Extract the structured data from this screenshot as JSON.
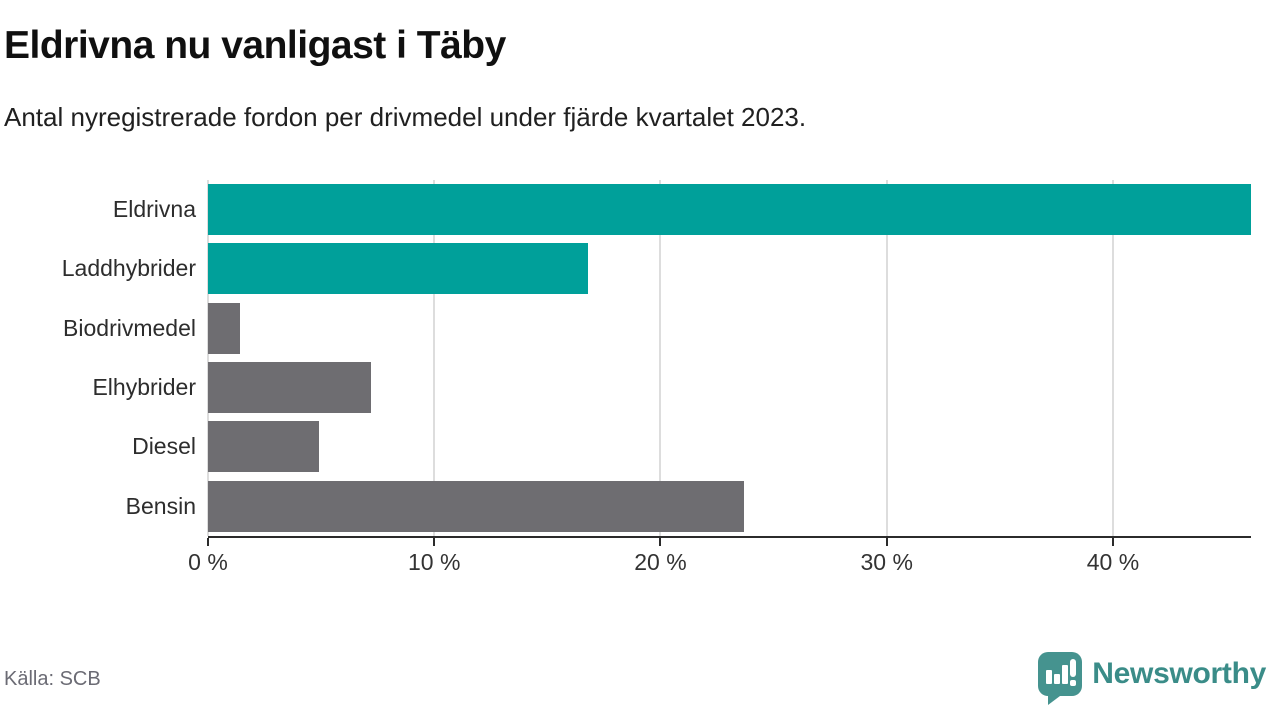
{
  "header": {
    "title": "Eldrivna nu vanligast i Täby",
    "subtitle": "Antal nyregistrerade fordon per drivmedel under fjärde kvartalet 2023."
  },
  "chart_data": {
    "type": "bar",
    "orientation": "horizontal",
    "title": "Eldrivna nu vanligast i Täby",
    "subtitle": "Antal nyregistrerade fordon per drivmedel under fjärde kvartalet 2023.",
    "categories": [
      "Eldrivna",
      "Laddhybrider",
      "Biodrivmedel",
      "Elhybrider",
      "Diesel",
      "Bensin"
    ],
    "values": [
      46.1,
      16.8,
      1.4,
      7.2,
      4.9,
      23.7
    ],
    "unit": "%",
    "bar_colors": [
      "#00A09A",
      "#00A09A",
      "#6E6D71",
      "#6E6D71",
      "#6E6D71",
      "#6E6D71"
    ],
    "xlim": [
      0,
      46.1
    ],
    "ticks": [
      {
        "label": "0 %",
        "value": 0
      },
      {
        "label": "10 %",
        "value": 10
      },
      {
        "label": "20 %",
        "value": 20
      },
      {
        "label": "30 %",
        "value": 30
      },
      {
        "label": "40 %",
        "value": 40
      }
    ],
    "grid": true,
    "legend": false,
    "ylabel": "",
    "xlabel": ""
  },
  "colors": {
    "highlight_teal": "#00A09A",
    "neutral_gray": "#6E6D71",
    "gridline": "#DDDDDD",
    "axis": "#2B2B2B",
    "brand_teal": "#3A8C88",
    "logo_icon_teal": "#45938F"
  },
  "footer": {
    "source": "Källa: SCB",
    "brand": "Newsworthy"
  }
}
